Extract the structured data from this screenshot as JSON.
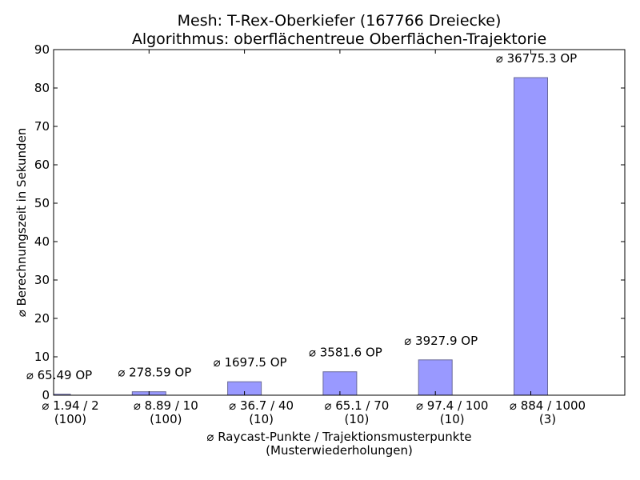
{
  "chart_data": {
    "type": "bar",
    "title": [
      "Mesh: T-Rex-Oberkiefer (167766 Dreiecke)",
      "Algorithmus: oberflächentreue Oberflächen-Trajektorie"
    ],
    "xlabel": [
      "⌀ Raycast-Punkte / Trajektionsmusterpunkte",
      "(Musterwiederholungen)"
    ],
    "ylabel": "⌀ Berechnungszeit in Sekunden",
    "ylim": [
      0,
      90
    ],
    "yticks": [
      "0",
      "10",
      "20",
      "30",
      "40",
      "50",
      "60",
      "70",
      "80",
      "90"
    ],
    "categories": [
      [
        "⌀ 1.94 / 2",
        "(100)"
      ],
      [
        "⌀ 8.89 / 10",
        "(100)"
      ],
      [
        "⌀ 36.7 / 40",
        "(10)"
      ],
      [
        "⌀ 65.1 / 70",
        "(10)"
      ],
      [
        "⌀ 97.4 / 100",
        "(10)"
      ],
      [
        "⌀ 884 / 1000",
        "(3)"
      ]
    ],
    "values": [
      0.25,
      0.9,
      3.5,
      6.1,
      9.2,
      82.7
    ],
    "bar_labels": [
      "⌀ 65.49 OP",
      "⌀ 278.59 OP",
      "⌀ 1697.5 OP",
      "⌀ 3581.6 OP",
      "⌀ 3927.9 OP",
      "⌀ 36775.3 OP"
    ],
    "bar_color": "#9999ff",
    "bar_edge_color": "#6a6a9a",
    "grid": false,
    "legend": "none"
  }
}
